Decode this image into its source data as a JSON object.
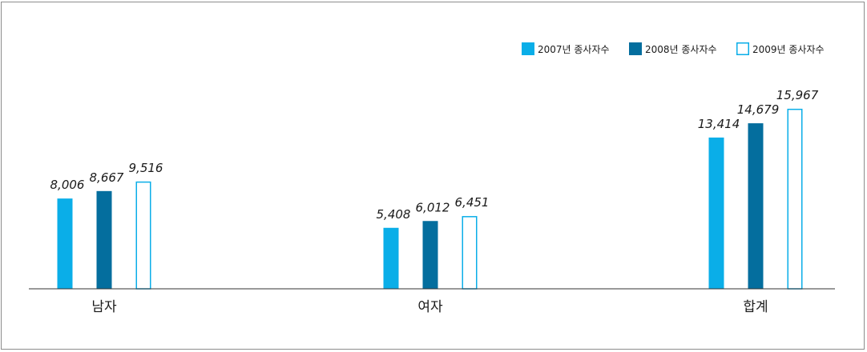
{
  "chart_data": {
    "type": "bar",
    "categories": [
      "남자",
      "여자",
      "합계"
    ],
    "series": [
      {
        "name": "2007년 종사자수",
        "values": [
          8006,
          5408,
          13414
        ],
        "color": "#0aaee8",
        "style": "filled"
      },
      {
        "name": "2008년 종사자수",
        "values": [
          8667,
          6012,
          14679
        ],
        "color": "#046e9e",
        "style": "filled"
      },
      {
        "name": "2009년 종사자수",
        "values": [
          9516,
          6451,
          15967
        ],
        "color": "#0aaee8",
        "style": "outline"
      }
    ],
    "data_labels": [
      [
        "8,006",
        "5,408",
        "13,414"
      ],
      [
        "8,667",
        "6,012",
        "14,679"
      ],
      [
        "9,516",
        "6,451",
        "15,967"
      ]
    ],
    "ylim": [
      0,
      18800
    ],
    "grid": false,
    "legend_position": "top-right"
  }
}
